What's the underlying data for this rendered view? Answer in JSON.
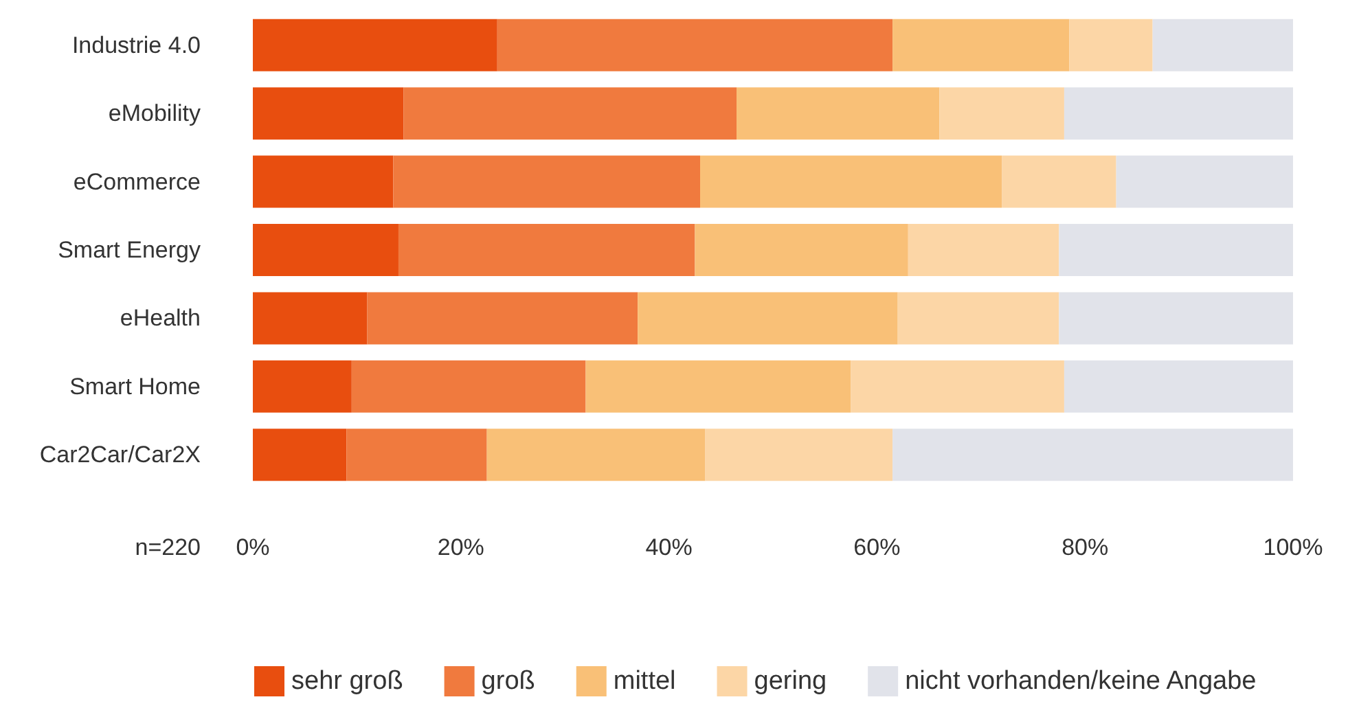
{
  "chart_data": {
    "type": "bar",
    "orientation": "horizontal",
    "stacked": true,
    "categories": [
      "Industrie 4.0",
      "eMobility",
      "eCommerce",
      "Smart Energy",
      "eHealth",
      "Smart Home",
      "Car2Car/Car2X"
    ],
    "series": [
      {
        "name": "sehr groß",
        "color": "#e84e0f",
        "values": [
          23.5,
          14.5,
          13.5,
          14,
          11,
          9.5,
          9
        ]
      },
      {
        "name": "groß",
        "color": "#f07a3e",
        "values": [
          38,
          32,
          29.5,
          28.5,
          26,
          22.5,
          13.5
        ]
      },
      {
        "name": "mittel",
        "color": "#f9c077",
        "values": [
          17,
          19.5,
          29,
          20.5,
          25,
          25.5,
          21
        ]
      },
      {
        "name": "gering",
        "color": "#fcd6a6",
        "values": [
          8,
          12,
          11,
          14.5,
          15.5,
          20.5,
          18
        ]
      },
      {
        "name": "nicht vorhanden/keine Angabe",
        "color": "#e1e3ea",
        "values": [
          13.5,
          22,
          17,
          22.5,
          22.5,
          22,
          38.5
        ]
      }
    ],
    "xlim": [
      0,
      100
    ],
    "xticks": [
      {
        "value": 0,
        "label": "0%"
      },
      {
        "value": 20,
        "label": "20%"
      },
      {
        "value": 40,
        "label": "40%"
      },
      {
        "value": 60,
        "label": "60%"
      },
      {
        "value": 80,
        "label": "80%"
      },
      {
        "value": 100,
        "label": "100%"
      }
    ],
    "annotations": [
      "n=220"
    ],
    "grid": false,
    "legend": "bottom"
  }
}
